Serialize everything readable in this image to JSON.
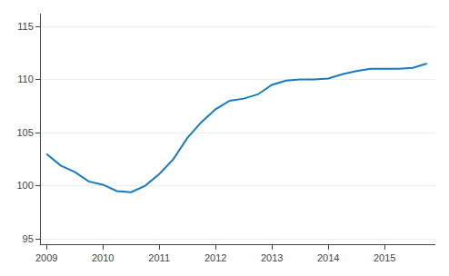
{
  "chart_data": {
    "type": "line",
    "x": [
      2009.0,
      2009.25,
      2009.5,
      2009.75,
      2010.0,
      2010.25,
      2010.5,
      2010.75,
      2011.0,
      2011.25,
      2011.5,
      2011.75,
      2012.0,
      2012.25,
      2012.5,
      2012.75,
      2013.0,
      2013.25,
      2013.5,
      2013.75,
      2014.0,
      2014.25,
      2014.5,
      2014.75,
      2015.0,
      2015.25,
      2015.5,
      2015.75
    ],
    "values": [
      103.0,
      101.9,
      101.3,
      100.4,
      100.1,
      99.5,
      99.4,
      100.0,
      101.1,
      102.5,
      104.5,
      106.0,
      107.2,
      108.0,
      108.2,
      108.6,
      109.5,
      109.9,
      110.0,
      110.0,
      110.1,
      110.5,
      110.8,
      111.0,
      111.0,
      111.0,
      111.1,
      111.5
    ],
    "color": "#1a7abf",
    "xlim": [
      2008.9,
      2015.9
    ],
    "ylim": [
      94.5,
      116.2
    ],
    "xticks": [
      2009,
      2010,
      2011,
      2012,
      2013,
      2014,
      2015
    ],
    "yticks": [
      95,
      100,
      105,
      110,
      115
    ],
    "grid": "y"
  }
}
